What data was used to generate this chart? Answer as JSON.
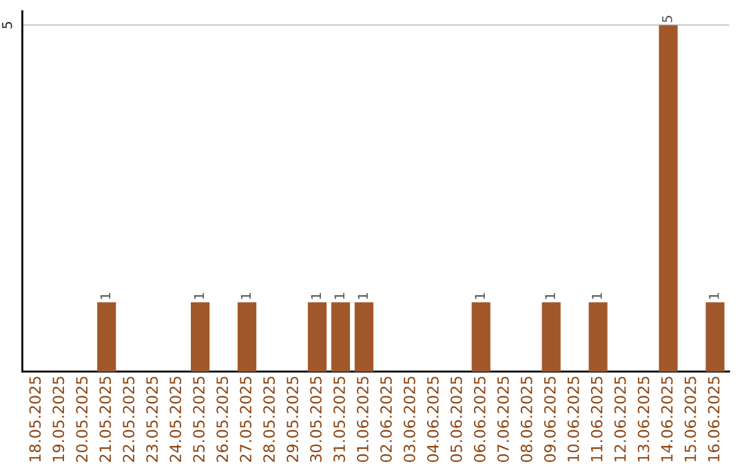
{
  "chart_data": {
    "type": "bar",
    "categories": [
      "18.05.2025",
      "19.05.2025",
      "20.05.2025",
      "21.05.2025",
      "22.05.2025",
      "23.05.2025",
      "24.05.2025",
      "25.05.2025",
      "26.05.2025",
      "27.05.2025",
      "28.05.2025",
      "29.05.2025",
      "30.05.2025",
      "31.05.2025",
      "01.06.2025",
      "02.06.2025",
      "03.06.2025",
      "04.06.2025",
      "05.06.2025",
      "06.06.2025",
      "07.06.2025",
      "08.06.2025",
      "09.06.2025",
      "10.06.2025",
      "11.06.2025",
      "12.06.2025",
      "13.06.2025",
      "14.06.2025",
      "15.06.2025",
      "16.06.2025"
    ],
    "values": [
      0,
      0,
      0,
      1,
      0,
      0,
      0,
      1,
      0,
      1,
      0,
      0,
      1,
      1,
      1,
      0,
      0,
      0,
      0,
      1,
      0,
      0,
      1,
      0,
      1,
      0,
      0,
      5,
      0,
      1
    ],
    "value_labels": [
      null,
      null,
      null,
      "1",
      null,
      null,
      null,
      "1",
      null,
      "1",
      null,
      null,
      "1",
      "1",
      "1",
      null,
      null,
      null,
      null,
      "1",
      null,
      null,
      "1",
      null,
      "1",
      null,
      null,
      "5",
      null,
      "1"
    ],
    "color": "#a0582a",
    "ylim": [
      0,
      5.2
    ],
    "yticks": [
      5
    ],
    "grid": "y",
    "legend": false
  }
}
